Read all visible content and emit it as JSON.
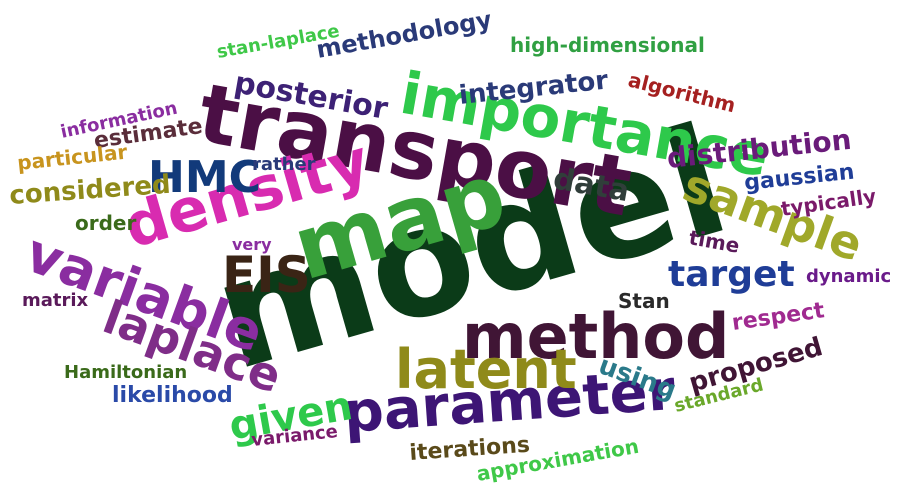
{
  "word_cloud": {
    "words": [
      {
        "text": "model",
        "color": "#0b3b18"
      },
      {
        "text": "transport",
        "color": "#4b0f45"
      },
      {
        "text": "importance",
        "color": "#2ec94b"
      },
      {
        "text": "map",
        "color": "#38a03a"
      },
      {
        "text": "method",
        "color": "#401535"
      },
      {
        "text": "density",
        "color": "#d82bb0"
      },
      {
        "text": "parameter",
        "color": "#3d1575"
      },
      {
        "text": "latent",
        "color": "#8f8a1a"
      },
      {
        "text": "variable",
        "color": "#8a2da0"
      },
      {
        "text": "laplace",
        "color": "#7f2d88"
      },
      {
        "text": "EIS",
        "color": "#3a2415"
      },
      {
        "text": "HMC",
        "color": "#123a7a"
      },
      {
        "text": "sample",
        "color": "#a0a82a"
      },
      {
        "text": "target",
        "color": "#1f3d97"
      },
      {
        "text": "given",
        "color": "#2ec94b"
      },
      {
        "text": "posterior",
        "color": "#3d2175"
      },
      {
        "text": "distribution",
        "color": "#6a1b7a"
      },
      {
        "text": "integrator",
        "color": "#2a3a78"
      },
      {
        "text": "data",
        "color": "#303e3a"
      },
      {
        "text": "methodology",
        "color": "#2a3a78"
      },
      {
        "text": "high-dimensional",
        "color": "#30a042"
      },
      {
        "text": "stan-laplace",
        "color": "#3fc848"
      },
      {
        "text": "algorithm",
        "color": "#a52020"
      },
      {
        "text": "information",
        "color": "#8a2da0"
      },
      {
        "text": "estimate",
        "color": "#5a2d3a"
      },
      {
        "text": "particular",
        "color": "#c8941e"
      },
      {
        "text": "considered",
        "color": "#8f8a1a"
      },
      {
        "text": "order",
        "color": "#3a6a1a"
      },
      {
        "text": "rather",
        "color": "#2a3a78"
      },
      {
        "text": "gaussian",
        "color": "#1f3d97"
      },
      {
        "text": "typically",
        "color": "#7a1a6a"
      },
      {
        "text": "time",
        "color": "#5a1a5a"
      },
      {
        "text": "very",
        "color": "#8a2da0"
      },
      {
        "text": "dynamic",
        "color": "#6a1b8a"
      },
      {
        "text": "Stan",
        "color": "#2a2a2a"
      },
      {
        "text": "respect",
        "color": "#a02a90"
      },
      {
        "text": "matrix",
        "color": "#5a1a5a"
      },
      {
        "text": "proposed",
        "color": "#401535"
      },
      {
        "text": "using",
        "color": "#2a7a8a"
      },
      {
        "text": "Hamiltonian",
        "color": "#3a6a1a"
      },
      {
        "text": "likelihood",
        "color": "#2a4aa8"
      },
      {
        "text": "standard",
        "color": "#6aa82a"
      },
      {
        "text": "variance",
        "color": "#7a1a6a"
      },
      {
        "text": "iterations",
        "color": "#5a4a1a"
      },
      {
        "text": "approximation",
        "color": "#3fc848"
      }
    ]
  }
}
